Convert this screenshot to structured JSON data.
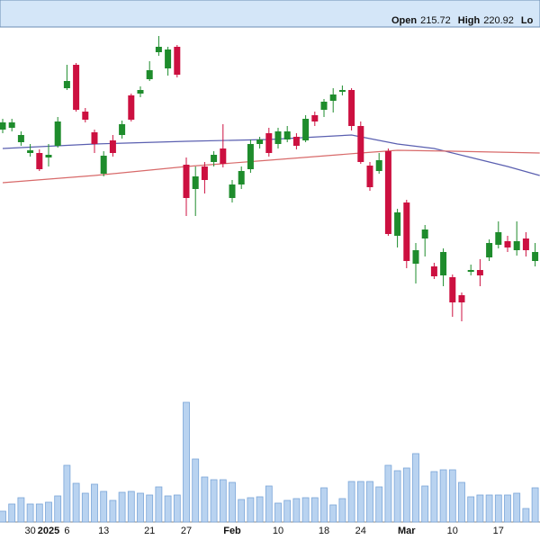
{
  "chart_data": {
    "type": "candlestick",
    "header": [
      {
        "label": "Open",
        "value": "215.72"
      },
      {
        "label": "High",
        "value": "220.92"
      },
      {
        "label": "Lo"
      }
    ],
    "categories": [
      null,
      null,
      null,
      "30",
      null,
      "2025",
      null,
      "6",
      null,
      null,
      null,
      "13",
      null,
      null,
      null,
      null,
      "21",
      null,
      null,
      null,
      "27",
      null,
      null,
      null,
      null,
      "Feb",
      null,
      null,
      null,
      null,
      "10",
      null,
      null,
      null,
      null,
      "18",
      null,
      null,
      null,
      "24",
      null,
      null,
      null,
      null,
      "Mar",
      null,
      null,
      null,
      null,
      "10",
      null,
      null,
      null,
      null,
      "17",
      null,
      null,
      null,
      null
    ],
    "ohlc": {
      "open": [
        229.6,
        229.8,
        228.2,
        227.0,
        227.0,
        226.5,
        227.8,
        234.2,
        236.8,
        231.6,
        229.3,
        224.7,
        228.4,
        229.0,
        233.4,
        233.6,
        235.2,
        238.2,
        236.4,
        238.8,
        225.7,
        223.0,
        225.5,
        226.0,
        227.5,
        222.0,
        223.5,
        225.2,
        228.0,
        229.2,
        228.0,
        228.5,
        228.8,
        228.4,
        231.2,
        231.8,
        232.8,
        233.8,
        234.0,
        230.0,
        225.6,
        225.0,
        227.2,
        217.8,
        221.5,
        214.7,
        217.5,
        214.4,
        213.4,
        213.2,
        211.2,
        213.8,
        214.0,
        215.4,
        216.8,
        217.2,
        216.2,
        217.5,
        215.0
      ],
      "high": [
        230.8,
        230.8,
        229.4,
        228.0,
        227.4,
        228.0,
        231.0,
        236.8,
        237.0,
        232.0,
        229.6,
        227.2,
        229.0,
        230.6,
        233.6,
        234.4,
        237.2,
        240.0,
        238.8,
        239.0,
        226.5,
        225.5,
        226.0,
        227.2,
        230.2,
        224.0,
        225.5,
        228.5,
        228.8,
        229.8,
        229.8,
        230.0,
        229.2,
        231.2,
        231.6,
        233.0,
        234.2,
        234.5,
        234.2,
        230.5,
        226.0,
        227.0,
        227.5,
        220.8,
        221.8,
        217.0,
        219.0,
        214.8,
        216.4,
        213.5,
        211.5,
        214.6,
        215.2,
        217.4,
        219.4,
        217.8,
        219.4,
        218.2,
        217.0
      ],
      "low": [
        229.2,
        229.4,
        227.8,
        226.6,
        225.0,
        225.5,
        227.6,
        234.0,
        231.6,
        230.4,
        227.0,
        224.4,
        226.6,
        228.6,
        230.5,
        233.2,
        235.0,
        237.8,
        235.6,
        235.4,
        220.0,
        220.0,
        222.5,
        225.5,
        225.4,
        221.5,
        223.0,
        224.8,
        227.5,
        226.6,
        227.5,
        228.2,
        227.4,
        228.2,
        230.0,
        231.0,
        231.5,
        233.4,
        229.5,
        225.8,
        222.8,
        224.7,
        217.8,
        216.5,
        214.2,
        212.5,
        215.5,
        213.0,
        212.2,
        208.8,
        208.3,
        213.4,
        212.2,
        215.0,
        216.4,
        216.0,
        215.6,
        215.5,
        214.4
      ],
      "close": [
        230.4,
        230.4,
        229.0,
        227.3,
        225.2,
        226.8,
        230.5,
        235.0,
        231.8,
        230.7,
        228.0,
        226.7,
        227.0,
        230.2,
        230.7,
        234.0,
        236.2,
        238.8,
        238.5,
        235.7,
        222.0,
        224.4,
        224.0,
        226.8,
        225.8,
        223.5,
        225.0,
        228.0,
        228.5,
        227.0,
        229.4,
        229.4,
        227.8,
        230.8,
        230.5,
        232.7,
        233.5,
        234.0,
        230.0,
        226.0,
        223.2,
        226.2,
        218.0,
        220.4,
        215.0,
        216.2,
        218.5,
        213.3,
        216.0,
        210.4,
        210.4,
        214.0,
        213.4,
        217.0,
        218.2,
        216.5,
        217.2,
        216.2,
        216.0
      ]
    },
    "volume": [
      6,
      10,
      13.5,
      10,
      10,
      11,
      14.5,
      31.5,
      21.5,
      16,
      21,
      17,
      12,
      16.5,
      17,
      16,
      15,
      19.5,
      14.5,
      15,
      66.5,
      35,
      25,
      23.5,
      23.5,
      22,
      12.5,
      13.5,
      14,
      20,
      10.5,
      12,
      13,
      13.5,
      13.5,
      19,
      9.5,
      13,
      22.5,
      22.5,
      22.5,
      19.5,
      31.5,
      28.5,
      30,
      38,
      20,
      28,
      29,
      29,
      22,
      14,
      15,
      15,
      15,
      15,
      16,
      7.5,
      19
    ],
    "moving_averages": [
      {
        "color": "#5a5fb0",
        "x": [
          0,
          10,
          20,
          29,
          38,
          43,
          47,
          51,
          55,
          58.5
        ],
        "values": [
          227.5,
          228.0,
          228.3,
          228.5,
          229.0,
          228.0,
          227.5,
          226.5,
          225.5,
          224.5
        ]
      },
      {
        "color": "#d86a6a",
        "x": [
          0,
          10,
          20,
          29,
          39,
          43,
          49,
          58.5
        ],
        "values": [
          223.7,
          224.5,
          225.5,
          226.2,
          227.0,
          227.3,
          227.2,
          227.0
        ]
      }
    ],
    "up_color": "#1e8c2c",
    "down_color": "#cc1040",
    "volume_color": "#b9d3f0",
    "ylim": [
      184,
      244
    ],
    "vlim": [
      0,
      80
    ]
  }
}
